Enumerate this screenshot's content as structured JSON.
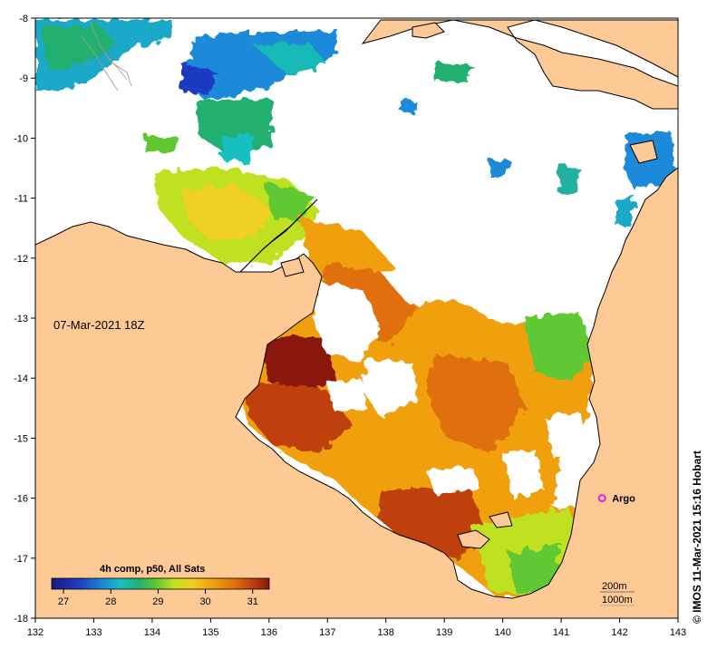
{
  "map": {
    "date_label": "07-Mar-2021 18Z",
    "credit": "© IMOS 11-Mar-2021 15:16 Hobart",
    "x_ticks": [
      "132",
      "133",
      "134",
      "135",
      "136",
      "137",
      "138",
      "139",
      "140",
      "141",
      "142",
      "143"
    ],
    "y_ticks": [
      "-8",
      "-9",
      "-10",
      "-11",
      "-12",
      "-13",
      "-14",
      "-15",
      "-16",
      "-17",
      "-18"
    ],
    "lon_range": [
      132,
      143
    ],
    "lat_range": [
      -18,
      -8
    ],
    "land_color": "#fdca96",
    "coast_color": "#000000",
    "argo": {
      "label": "Argo",
      "lon": 141.7,
      "lat": -16.0,
      "color": "#e020e0"
    },
    "contours": {
      "depth_200": "200m",
      "depth_1000": "1000m"
    },
    "colorbar": {
      "title": "4h comp, p50, All Sats",
      "ticks": [
        "27",
        "28",
        "29",
        "30",
        "31"
      ],
      "colors": [
        "#1a1a80",
        "#1e3ac0",
        "#1a8ad8",
        "#18c0c0",
        "#20b070",
        "#60c830",
        "#c0e020",
        "#f0d020",
        "#f0a010",
        "#e07010",
        "#c04010",
        "#8a1808"
      ]
    }
  }
}
